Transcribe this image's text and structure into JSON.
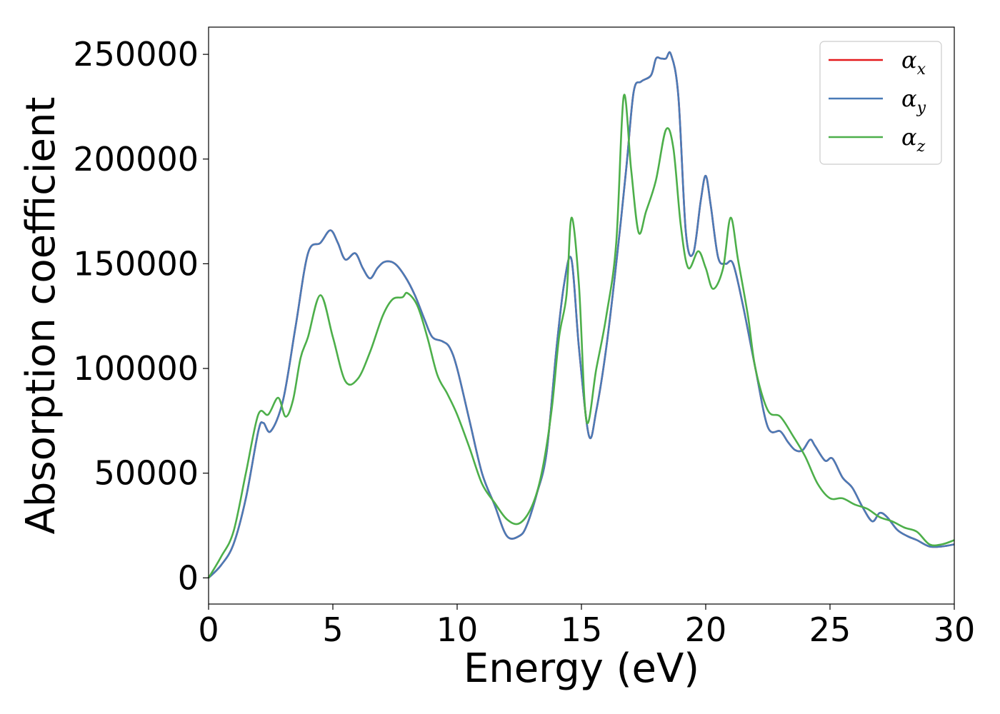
{
  "chart_data": {
    "type": "line",
    "xlabel": "Energy (eV)",
    "ylabel": "Absorption coefficient",
    "xlim": [
      0,
      30
    ],
    "ylim": [
      -12500,
      263000
    ],
    "x_ticks": [
      0,
      5,
      10,
      15,
      20,
      25,
      30
    ],
    "x_tick_labels": [
      "0",
      "5",
      "10",
      "15",
      "20",
      "25",
      "30"
    ],
    "y_ticks": [
      0,
      50000,
      100000,
      150000,
      200000,
      250000
    ],
    "y_tick_labels": [
      "0",
      "50000",
      "100000",
      "150000",
      "200000",
      "250000"
    ],
    "grid": false,
    "legend_position": "top-right",
    "series": [
      {
        "name": "αx",
        "symbol": "α",
        "subscript": "x",
        "color": "#e41a1c",
        "x": [
          0,
          0.5,
          1.0,
          1.5,
          2.0,
          2.2,
          2.5,
          3.0,
          3.5,
          4.0,
          4.5,
          4.9,
          5.2,
          5.5,
          5.9,
          6.2,
          6.5,
          6.8,
          7.1,
          7.5,
          7.9,
          8.3,
          8.7,
          9.0,
          9.4,
          9.7,
          10.0,
          10.5,
          11.0,
          11.5,
          12.0,
          12.5,
          12.8,
          13.2,
          13.6,
          14.0,
          14.3,
          14.6,
          14.9,
          15.3,
          15.6,
          16.0,
          16.4,
          16.8,
          17.1,
          17.4,
          17.8,
          18.0,
          18.2,
          18.4,
          18.6,
          18.9,
          19.2,
          19.5,
          19.8,
          20.0,
          20.2,
          20.5,
          20.8,
          21.1,
          21.5,
          22.0,
          22.5,
          23.0,
          23.3,
          23.6,
          23.9,
          24.2,
          24.4,
          24.8,
          25.1,
          25.5,
          25.9,
          26.3,
          26.7,
          27.0,
          27.3,
          27.7,
          28.1,
          28.5,
          29.0,
          29.5,
          30.0
        ],
        "values": [
          0,
          6000,
          16000,
          38000,
          70000,
          74000,
          70000,
          85000,
          120000,
          155000,
          160000,
          166000,
          160000,
          152000,
          155000,
          148000,
          143000,
          148000,
          151000,
          150000,
          144000,
          135000,
          123000,
          115000,
          113000,
          110000,
          100000,
          75000,
          50000,
          35000,
          20000,
          20000,
          25000,
          40000,
          60000,
          110000,
          140000,
          152000,
          110000,
          68000,
          80000,
          110000,
          150000,
          195000,
          232000,
          237000,
          240000,
          248000,
          248000,
          248000,
          250000,
          230000,
          165000,
          155000,
          180000,
          192000,
          178000,
          153000,
          150000,
          150000,
          130000,
          100000,
          72000,
          70000,
          65000,
          61000,
          61000,
          66000,
          63000,
          56000,
          57000,
          48000,
          43000,
          34000,
          27000,
          31000,
          29000,
          23000,
          20000,
          18000,
          15000,
          15000,
          16000
        ]
      },
      {
        "name": "αy",
        "symbol": "α",
        "subscript": "y",
        "color": "#4a7bb7",
        "x": [
          0,
          0.5,
          1.0,
          1.5,
          2.0,
          2.2,
          2.5,
          3.0,
          3.5,
          4.0,
          4.5,
          4.9,
          5.2,
          5.5,
          5.9,
          6.2,
          6.5,
          6.8,
          7.1,
          7.5,
          7.9,
          8.3,
          8.7,
          9.0,
          9.4,
          9.7,
          10.0,
          10.5,
          11.0,
          11.5,
          12.0,
          12.5,
          12.8,
          13.2,
          13.6,
          14.0,
          14.3,
          14.6,
          14.9,
          15.3,
          15.6,
          16.0,
          16.4,
          16.8,
          17.1,
          17.4,
          17.8,
          18.0,
          18.2,
          18.4,
          18.6,
          18.9,
          19.2,
          19.5,
          19.8,
          20.0,
          20.2,
          20.5,
          20.8,
          21.1,
          21.5,
          22.0,
          22.5,
          23.0,
          23.3,
          23.6,
          23.9,
          24.2,
          24.4,
          24.8,
          25.1,
          25.5,
          25.9,
          26.3,
          26.7,
          27.0,
          27.3,
          27.7,
          28.1,
          28.5,
          29.0,
          29.5,
          30.0
        ],
        "values": [
          0,
          6000,
          16000,
          38000,
          70000,
          74000,
          70000,
          85000,
          120000,
          155000,
          160000,
          166000,
          160000,
          152000,
          155000,
          148000,
          143000,
          148000,
          151000,
          150000,
          144000,
          135000,
          123000,
          115000,
          113000,
          110000,
          100000,
          75000,
          50000,
          35000,
          20000,
          20000,
          25000,
          40000,
          60000,
          110000,
          140000,
          152000,
          110000,
          68000,
          80000,
          110000,
          150000,
          195000,
          232000,
          237000,
          240000,
          248000,
          248000,
          248000,
          250000,
          230000,
          165000,
          155000,
          180000,
          192000,
          178000,
          153000,
          150000,
          150000,
          130000,
          100000,
          72000,
          70000,
          65000,
          61000,
          61000,
          66000,
          63000,
          56000,
          57000,
          48000,
          43000,
          34000,
          27000,
          31000,
          29000,
          23000,
          20000,
          18000,
          15000,
          15000,
          16000
        ]
      },
      {
        "name": "αz",
        "symbol": "α",
        "subscript": "z",
        "color": "#4daf4a",
        "x": [
          0,
          0.5,
          1.0,
          1.5,
          2.0,
          2.4,
          2.8,
          3.1,
          3.4,
          3.7,
          4.0,
          4.5,
          5.0,
          5.5,
          6.0,
          6.5,
          7.0,
          7.4,
          7.8,
          8.0,
          8.4,
          8.8,
          9.2,
          9.6,
          10.0,
          10.5,
          11.0,
          11.5,
          12.0,
          12.5,
          13.0,
          13.4,
          13.8,
          14.1,
          14.4,
          14.6,
          14.9,
          15.2,
          15.6,
          16.0,
          16.4,
          16.7,
          17.0,
          17.3,
          17.6,
          18.0,
          18.4,
          18.7,
          19.0,
          19.3,
          19.7,
          20.0,
          20.3,
          20.7,
          21.0,
          21.3,
          21.7,
          22.0,
          22.5,
          23.0,
          23.5,
          24.0,
          24.5,
          25.0,
          25.5,
          26.0,
          26.5,
          27.0,
          27.5,
          28.0,
          28.5,
          29.0,
          29.5,
          30.0
        ],
        "values": [
          0,
          10000,
          22000,
          50000,
          78000,
          78000,
          86000,
          77000,
          85000,
          105000,
          115000,
          135000,
          115000,
          94000,
          95000,
          108000,
          125000,
          133000,
          134000,
          136000,
          130000,
          115000,
          97000,
          88000,
          78000,
          62000,
          45000,
          36000,
          28000,
          26000,
          34000,
          50000,
          80000,
          115000,
          135000,
          172000,
          140000,
          75000,
          100000,
          125000,
          160000,
          230000,
          195000,
          165000,
          175000,
          190000,
          214000,
          205000,
          168000,
          148000,
          156000,
          148000,
          138000,
          148000,
          172000,
          152000,
          125000,
          100000,
          80000,
          77000,
          68000,
          58000,
          45000,
          38000,
          38000,
          35000,
          33000,
          29000,
          27000,
          24000,
          22000,
          16000,
          16000,
          18000
        ]
      }
    ]
  }
}
